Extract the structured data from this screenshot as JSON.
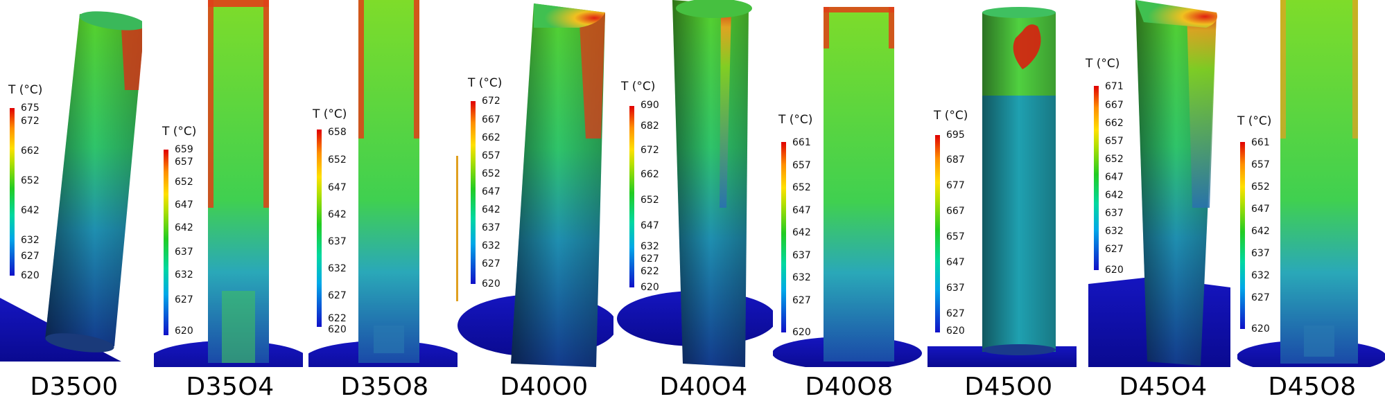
{
  "colorbar_title": "T (°C)",
  "panels": [
    {
      "label": "D35O0",
      "ticks": [
        "675",
        "672",
        "662",
        "652",
        "642",
        "632",
        "627",
        "620"
      ]
    },
    {
      "label": "D35O4",
      "ticks": [
        "659",
        "657",
        "652",
        "647",
        "642",
        "637",
        "632",
        "627",
        "620"
      ]
    },
    {
      "label": "D35O8",
      "ticks": [
        "658",
        "652",
        "647",
        "642",
        "637",
        "632",
        "627",
        "622",
        "620"
      ]
    },
    {
      "label": "D40O0",
      "ticks": [
        "672",
        "667",
        "662",
        "657",
        "652",
        "647",
        "642",
        "637",
        "632",
        "627",
        "620"
      ]
    },
    {
      "label": "D40O4",
      "ticks": [
        "690",
        "682",
        "672",
        "662",
        "652",
        "647",
        "632",
        "627",
        "622",
        "620"
      ]
    },
    {
      "label": "D40O8",
      "ticks": [
        "661",
        "657",
        "652",
        "647",
        "642",
        "637",
        "632",
        "627",
        "620"
      ]
    },
    {
      "label": "D45O0",
      "ticks": [
        "695",
        "687",
        "677",
        "667",
        "657",
        "647",
        "637",
        "627",
        "620"
      ]
    },
    {
      "label": "D45O4",
      "ticks": [
        "671",
        "667",
        "662",
        "657",
        "652",
        "647",
        "642",
        "637",
        "632",
        "627",
        "620"
      ]
    },
    {
      "label": "D45O8",
      "ticks": [
        "661",
        "657",
        "652",
        "647",
        "642",
        "637",
        "632",
        "627",
        "620"
      ]
    }
  ]
}
